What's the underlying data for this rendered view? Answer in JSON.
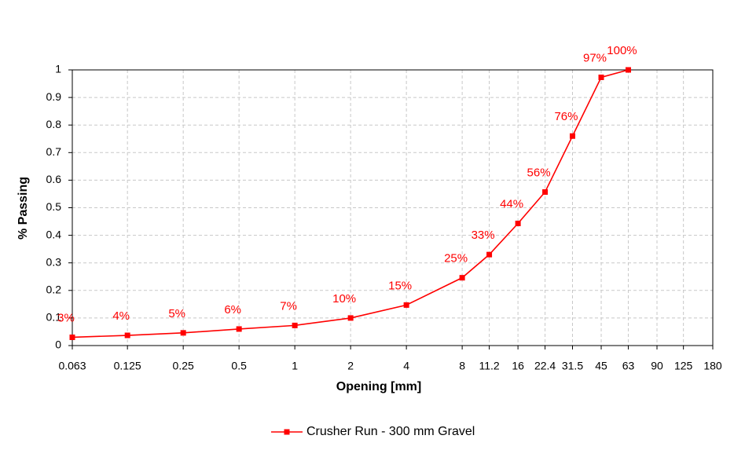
{
  "chart_data": {
    "type": "line",
    "xlabel": "Opening  [mm]",
    "ylabel": "% Passing",
    "x": [
      0.063,
      0.125,
      0.25,
      0.5,
      1,
      2,
      4,
      8,
      11.2,
      16,
      22.4,
      31.5,
      45,
      63
    ],
    "series": [
      {
        "name": "Crusher Run - 300 mm Gravel",
        "color": "#ff0000",
        "values": [
          0.03,
          0.037,
          0.046,
          0.06,
          0.073,
          0.1,
          0.147,
          0.246,
          0.33,
          0.443,
          0.557,
          0.76,
          0.973,
          1.0
        ],
        "value_labels": [
          "3%",
          "4%",
          "5%",
          "6%",
          "7%",
          "10%",
          "15%",
          "25%",
          "33%",
          "44%",
          "56%",
          "76%",
          "97%",
          "100%"
        ]
      }
    ],
    "xscale": "log",
    "xlim": [
      0.063,
      180
    ],
    "xticks": [
      0.063,
      0.125,
      0.25,
      0.5,
      1,
      2,
      4,
      8,
      11.2,
      16,
      22.4,
      31.5,
      45,
      63,
      90,
      125,
      180
    ],
    "ylim": [
      0,
      1
    ],
    "yticks": [
      0,
      0.1,
      0.2,
      0.3,
      0.4,
      0.5,
      0.6,
      0.7,
      0.8,
      0.9,
      1
    ],
    "grid": true,
    "legend": "bottom"
  }
}
